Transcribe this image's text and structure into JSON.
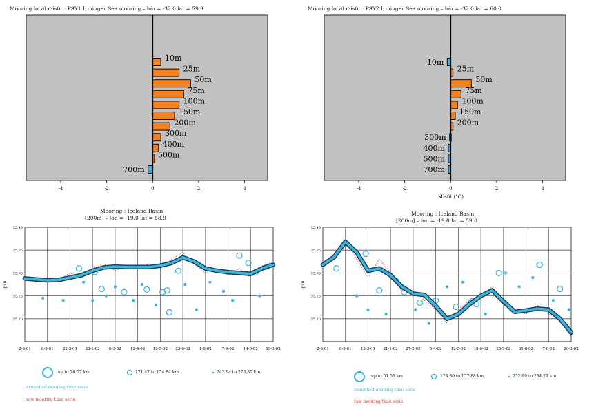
{
  "chart_data": [
    {
      "type": "bar",
      "orientation": "horizontal",
      "title": "Mooring local misfit : PSY1 Irminger Sea.mooring  –  lon = -32.0    lat = 59.9",
      "xlabel": "",
      "xlim": [
        -5.5,
        5
      ],
      "xticks": [
        -4,
        -2,
        0,
        2,
        4
      ],
      "grid": false,
      "categories": [
        "10m",
        "25m",
        "50m",
        "75m",
        "100m",
        "150m",
        "200m",
        "300m",
        "400m",
        "500m",
        "700m"
      ],
      "values": [
        0.35,
        1.15,
        1.65,
        1.35,
        1.15,
        0.95,
        0.75,
        0.35,
        0.25,
        0.05,
        -0.2
      ],
      "bar_colors": {
        "positive": "#f5821f",
        "negative": "#35b3dd"
      },
      "background": "#c2c2c2"
    },
    {
      "type": "bar",
      "orientation": "horizontal",
      "title": "Mooring local misfit : PSY2 Irminger Sea.mooring  –  lon = -32.0    lat = 60.0",
      "xlabel": "Misfit (°C)",
      "xlim": [
        -5.5,
        5
      ],
      "xticks": [
        -4,
        -2,
        0,
        2,
        4
      ],
      "grid": false,
      "categories": [
        "10m",
        "25m",
        "50m",
        "75m",
        "100m",
        "150m",
        "200m",
        "300m",
        "400m",
        "500m",
        "700m"
      ],
      "values": [
        -0.15,
        0.1,
        0.9,
        0.45,
        0.3,
        0.2,
        0.1,
        -0.05,
        -0.1,
        -0.1,
        -0.1
      ],
      "bar_colors": {
        "positive": "#f5821f",
        "negative": "#35b3dd"
      },
      "background": "#c2c2c2"
    },
    {
      "type": "line",
      "title": "Mooring :  Iceland Basin",
      "subtitle": "[200m]   –   lon = -19.0    lat = 58.9",
      "ylabel": "psu",
      "ylim": [
        35.15,
        35.4
      ],
      "yticks": [
        "35.40",
        "35.35",
        "35.30",
        "35.25",
        "35.20"
      ],
      "xticks": [
        "2-3-01",
        "8-3-01",
        "22-3-01",
        "28-1-02",
        "6-3-02",
        "12-4-02",
        "19-5-02",
        "25-6-02",
        "1-8-02",
        "7-9-02",
        "14-0-02",
        "19-3-02"
      ],
      "x": [
        0,
        0.5,
        1,
        1.5,
        2,
        2.5,
        3,
        3.5,
        4,
        4.5,
        5,
        5.5,
        6,
        6.5,
        7,
        7.5,
        8,
        8.5,
        9,
        9.5,
        10,
        10.5,
        11
      ],
      "series": [
        {
          "values": [
            35.288,
            35.286,
            35.284,
            35.285,
            35.29,
            35.295,
            35.305,
            35.312,
            35.314,
            35.313,
            35.313,
            35.313,
            35.316,
            35.322,
            35.334,
            35.325,
            35.31,
            35.305,
            35.302,
            35.3,
            35.298,
            35.31,
            35.318
          ]
        },
        {
          "values": [
            35.292,
            35.28,
            35.29,
            35.285,
            35.3,
            35.29,
            35.31,
            35.32,
            35.305,
            35.315,
            35.31,
            35.32,
            35.31,
            35.33,
            35.345,
            35.32,
            35.3,
            35.31,
            35.295,
            35.31,
            35.29,
            35.315,
            35.325
          ]
        }
      ],
      "scatter": [
        [
          2.4,
          35.31
        ],
        [
          3.1,
          35.302
        ],
        [
          3.4,
          35.265
        ],
        [
          4.4,
          35.258
        ],
        [
          5.4,
          35.264
        ],
        [
          6.1,
          35.258
        ],
        [
          6.3,
          35.262
        ],
        [
          6.4,
          35.214
        ],
        [
          6.8,
          35.305
        ],
        [
          9.5,
          35.338
        ],
        [
          9.9,
          35.322
        ],
        [
          10.2,
          35.301
        ],
        [
          1.7,
          35.24
        ],
        [
          2.6,
          35.28
        ],
        [
          3.0,
          35.24
        ],
        [
          3.6,
          35.25
        ],
        [
          4.0,
          35.27
        ],
        [
          4.8,
          35.24
        ],
        [
          5.2,
          35.275
        ],
        [
          5.8,
          35.23
        ],
        [
          7.1,
          35.275
        ],
        [
          7.6,
          35.22
        ],
        [
          8.2,
          35.28
        ],
        [
          8.8,
          35.26
        ],
        [
          9.2,
          35.24
        ],
        [
          10.4,
          35.25
        ],
        [
          10.7,
          35.31
        ],
        [
          0.8,
          35.245
        ]
      ],
      "legend_entries": [
        "up to    70.57  km",
        "171.47  to   154.84  km",
        "242.94  to   273.30  km",
        "smoothed mooring time serie",
        "raw mooring time serie"
      ]
    },
    {
      "type": "line",
      "title": "Mooring :  Iceland Basin",
      "subtitle": "[200m]   –   lon = -19.0    lat = 59.0",
      "ylabel": "psu",
      "ylim": [
        35.15,
        35.4
      ],
      "yticks": [
        "35.40",
        "35.35",
        "35.30",
        "35.25",
        "35.20"
      ],
      "xticks": [
        "2-3-01",
        "8-3-01",
        "13-3-01",
        "21-1-02",
        "27-2-02",
        "5-4-02",
        "12-5-02",
        "18-6-02",
        "25-7-02",
        "31-8-02",
        "7-0-02",
        "20-3-02"
      ],
      "x": [
        0,
        0.5,
        1,
        1.5,
        2,
        2.5,
        3,
        3.5,
        4,
        4.5,
        5,
        5.5,
        6,
        6.5,
        7,
        7.5,
        8,
        8.5,
        9,
        9.5,
        10,
        10.5,
        11
      ],
      "series": [
        {
          "values": [
            35.318,
            35.335,
            35.368,
            35.345,
            35.305,
            35.31,
            35.295,
            35.27,
            35.255,
            35.252,
            35.228,
            35.2,
            35.21,
            35.232,
            35.25,
            35.262,
            35.238,
            35.215,
            35.218,
            35.222,
            35.22,
            35.2,
            35.17
          ]
        },
        {
          "values": [
            35.32,
            35.34,
            35.37,
            35.33,
            35.29,
            35.33,
            35.3,
            35.26,
            35.26,
            35.24,
            35.22,
            35.19,
            35.22,
            35.24,
            35.25,
            35.27,
            35.23,
            35.22,
            35.21,
            35.23,
            35.21,
            35.2,
            35.16
          ]
        }
      ],
      "scatter": [
        [
          1.9,
          35.342
        ],
        [
          2.5,
          35.262
        ],
        [
          3.6,
          35.258
        ],
        [
          4.3,
          35.235
        ],
        [
          5.0,
          35.24
        ],
        [
          5.9,
          35.226
        ],
        [
          6.6,
          35.238
        ],
        [
          6.8,
          35.232
        ],
        [
          7.8,
          35.3
        ],
        [
          9.6,
          35.318
        ],
        [
          10.5,
          35.265
        ],
        [
          0.6,
          35.31
        ],
        [
          1.5,
          35.25
        ],
        [
          2.0,
          35.22
        ],
        [
          2.8,
          35.21
        ],
        [
          3.3,
          35.285
        ],
        [
          4.1,
          35.22
        ],
        [
          4.7,
          35.19
        ],
        [
          5.5,
          35.27
        ],
        [
          6.2,
          35.28
        ],
        [
          7.2,
          35.21
        ],
        [
          8.1,
          35.3
        ],
        [
          8.7,
          35.27
        ],
        [
          9.3,
          35.29
        ],
        [
          10.2,
          35.24
        ],
        [
          10.9,
          35.22
        ]
      ],
      "legend_entries": [
        "up to    51.58  km",
        "128.30  to   157.88  km",
        "252.89  to   284.29  km",
        "smoothed mooring time serie",
        "raw mooring time serie"
      ]
    }
  ]
}
